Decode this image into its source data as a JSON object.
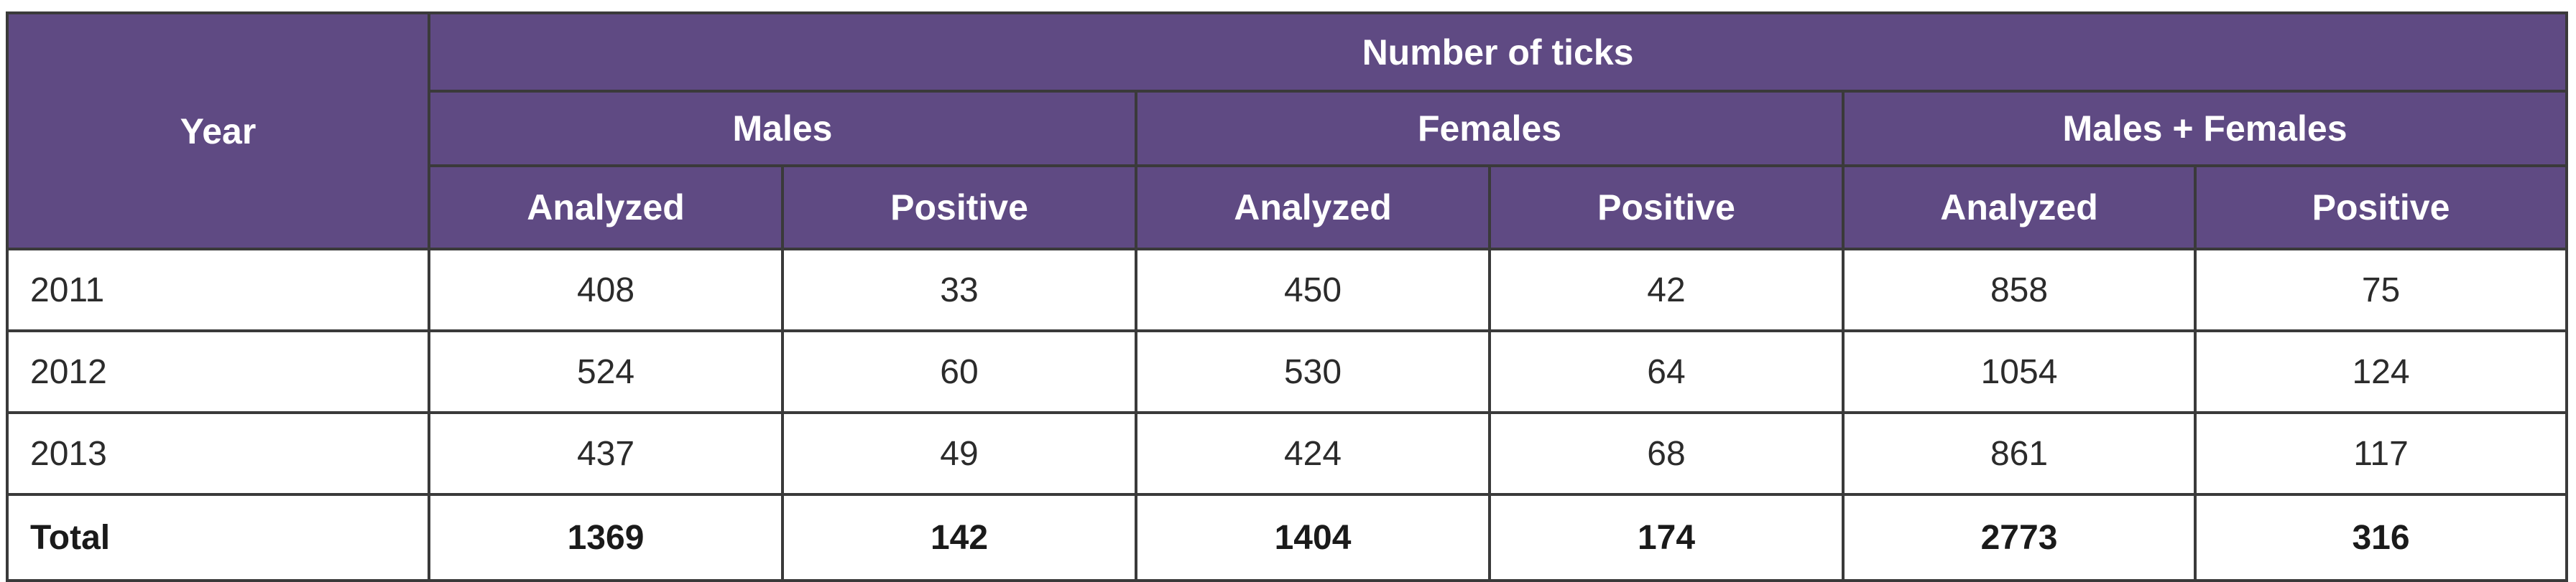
{
  "table": {
    "year_header": "Year",
    "group_header": "Number of ticks",
    "groups": [
      "Males",
      "Females",
      "Males + Females"
    ],
    "subheaders": [
      "Analyzed",
      "Positive"
    ],
    "rows": [
      {
        "year": "2011",
        "values": [
          "408",
          "33",
          "450",
          "42",
          "858",
          "75"
        ]
      },
      {
        "year": "2012",
        "values": [
          "524",
          "60",
          "530",
          "64",
          "1054",
          "124"
        ]
      },
      {
        "year": "2013",
        "values": [
          "437",
          "49",
          "424",
          "68",
          "861",
          "117"
        ]
      }
    ],
    "total": {
      "label": "Total",
      "values": [
        "1369",
        "142",
        "1404",
        "174",
        "2773",
        "316"
      ]
    }
  }
}
